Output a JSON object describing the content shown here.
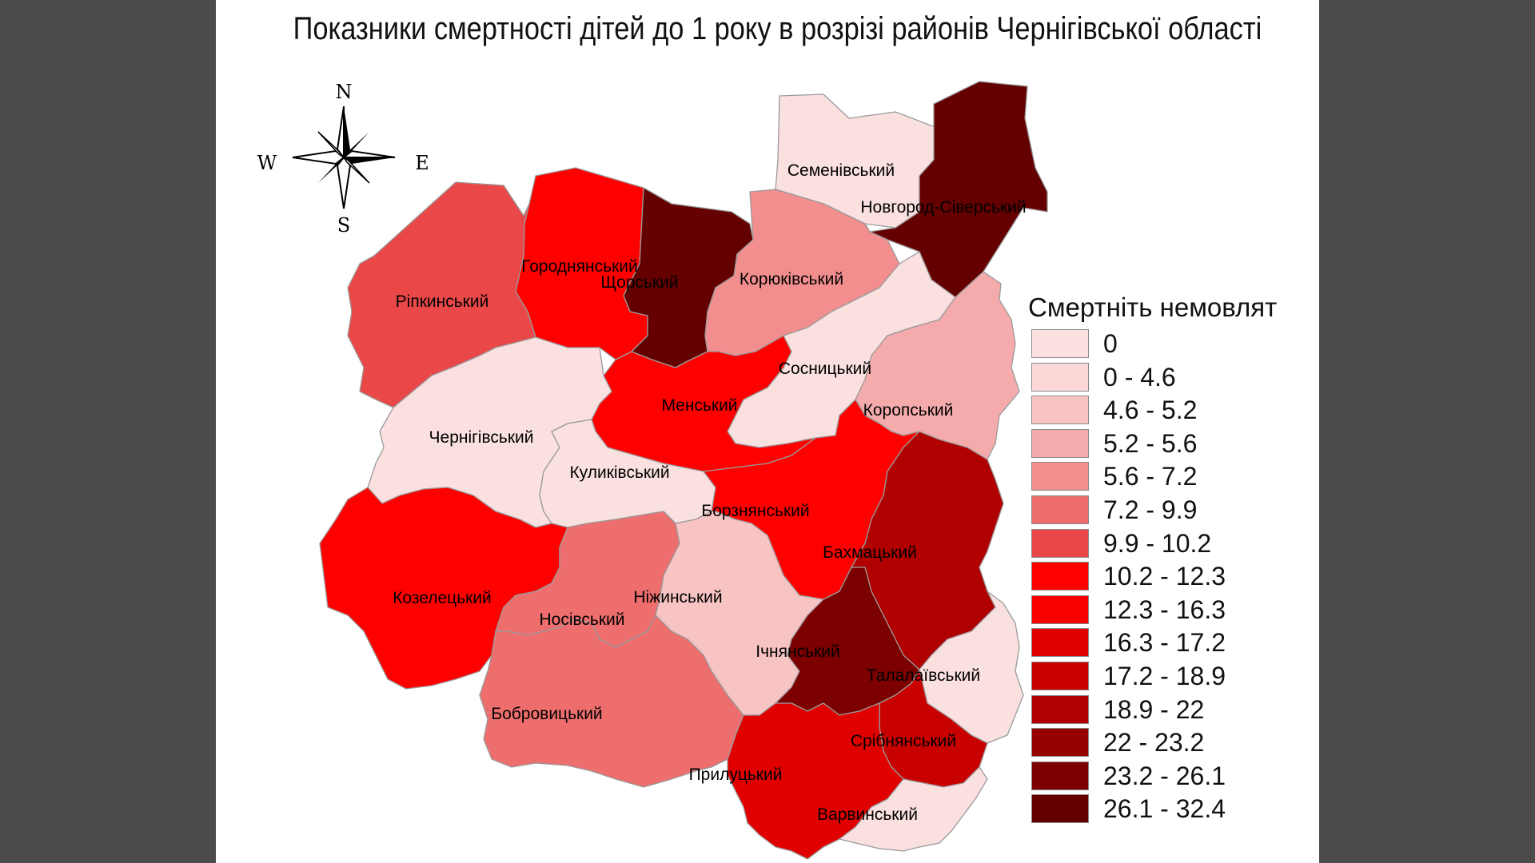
{
  "title": "Показники смертності дітей до 1 року в розрізі районів Чернігівської області",
  "compass": {
    "north": "N",
    "south": "S",
    "east": "E",
    "west": "W",
    "icon": "compass-rose-icon"
  },
  "legend": {
    "title": "Смертніть немовлят",
    "classes": [
      {
        "label": "0",
        "color": "#fbe0e0"
      },
      {
        "label": "0 - 4.6",
        "color": "#fbd7d7"
      },
      {
        "label": "4.6 - 5.2",
        "color": "#f8c3c3"
      },
      {
        "label": "5.2 - 5.6",
        "color": "#f5abab"
      },
      {
        "label": "5.6 - 7.2",
        "color": "#f28e8e"
      },
      {
        "label": "7.2 - 9.9",
        "color": "#ee6e6e"
      },
      {
        "label": "9.9 - 10.2",
        "color": "#ea4848"
      },
      {
        "label": "10.2 - 12.3",
        "color": "#ff0000"
      },
      {
        "label": "12.3 - 16.3",
        "color": "#f80000"
      },
      {
        "label": "16.3 - 17.2",
        "color": "#e00000"
      },
      {
        "label": "17.2 - 18.9",
        "color": "#c90000"
      },
      {
        "label": "18.9 - 22",
        "color": "#b00000"
      },
      {
        "label": "22 - 23.2",
        "color": "#960000"
      },
      {
        "label": "23.2 - 26.1",
        "color": "#7c0000"
      },
      {
        "label": "26.1 - 32.4",
        "color": "#640000"
      }
    ]
  },
  "districts": [
    {
      "id": "semenivskyi",
      "name": "Семенівський",
      "color": "#fbe0e0"
    },
    {
      "id": "novhorod-siverskyi",
      "name": "Новгород-Сіверський",
      "color": "#640000"
    },
    {
      "id": "horodnianskyi",
      "name": "Городнянський",
      "color": "#ff0000"
    },
    {
      "id": "shchorskyi",
      "name": "Щорський",
      "color": "#640000"
    },
    {
      "id": "koriukivskyi",
      "name": "Корюківський",
      "color": "#f28e8e"
    },
    {
      "id": "ripkynskyi",
      "name": "Ріпкинський",
      "color": "#ea4848"
    },
    {
      "id": "sosnytskyi",
      "name": "Сосницький",
      "color": "#fbe0e0"
    },
    {
      "id": "koropskyi",
      "name": "Коропський",
      "color": "#f5abab"
    },
    {
      "id": "menskyi",
      "name": "Менський",
      "color": "#ff0000"
    },
    {
      "id": "chernihivskyi",
      "name": "Чернігівський",
      "color": "#fbe0e0"
    },
    {
      "id": "kulykivskyi",
      "name": "Куликівський",
      "color": "#fbe0e0"
    },
    {
      "id": "borznianskyi",
      "name": "Борзнянський",
      "color": "#ff0000"
    },
    {
      "id": "bakhmatskyi",
      "name": "Бахмацький",
      "color": "#b00000"
    },
    {
      "id": "kozeletskyi",
      "name": "Козелецький",
      "color": "#ff0000"
    },
    {
      "id": "nosivskyi",
      "name": "Носівський",
      "color": "#ee6e6e"
    },
    {
      "id": "nizhynskyi",
      "name": "Ніжинський",
      "color": "#f8c3c3"
    },
    {
      "id": "ichnianskyi",
      "name": "Ічнянський",
      "color": "#7c0000"
    },
    {
      "id": "talalaivskyi",
      "name": "Талалаївський",
      "color": "#fbe0e0"
    },
    {
      "id": "bobrovytskyi",
      "name": "Бобровицький",
      "color": "#ee6e6e"
    },
    {
      "id": "sribnianskyi",
      "name": "Срібнянський",
      "color": "#c90000"
    },
    {
      "id": "prylutskyi",
      "name": "Прилуцький",
      "color": "#e00000"
    },
    {
      "id": "varvynskyi",
      "name": "Варвинський",
      "color": "#fbe0e0"
    }
  ]
}
